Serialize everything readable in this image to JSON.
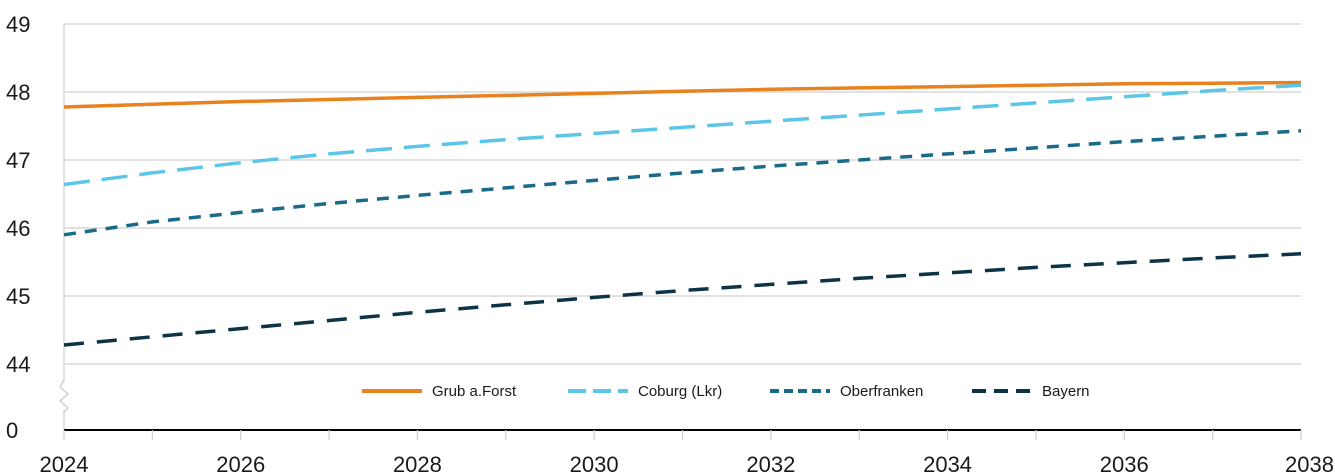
{
  "chart_data": {
    "type": "line",
    "title": "",
    "xlabel": "",
    "ylabel": "",
    "x": [
      2024,
      2025,
      2026,
      2027,
      2028,
      2029,
      2030,
      2031,
      2032,
      2033,
      2034,
      2035,
      2036,
      2037,
      2038
    ],
    "xlim": [
      2024,
      2038
    ],
    "x_tick_labels": [
      "2024",
      "2026",
      "2028",
      "2030",
      "2032",
      "2034",
      "2036",
      "2038"
    ],
    "y_tick_labels": [
      "0",
      "44",
      "45",
      "46",
      "47",
      "48",
      "49"
    ],
    "y_axis_break": true,
    "ylim_upper": [
      44,
      49
    ],
    "grid": true,
    "legend_position": "bottom-center",
    "series": [
      {
        "name": "Grub a.Forst",
        "color": "#e8821e",
        "dash": "solid",
        "values": [
          47.78,
          47.82,
          47.86,
          47.89,
          47.92,
          47.95,
          47.98,
          48.01,
          48.04,
          48.06,
          48.08,
          48.1,
          48.12,
          48.13,
          48.14
        ]
      },
      {
        "name": "Coburg (Lkr)",
        "color": "#5cc6e8",
        "dash": "long",
        "values": [
          46.64,
          46.81,
          46.96,
          47.09,
          47.2,
          47.3,
          47.39,
          47.48,
          47.57,
          47.66,
          47.75,
          47.84,
          47.93,
          48.02,
          48.1
        ]
      },
      {
        "name": "Oberfranken",
        "color": "#1a6a8a",
        "dash": "short",
        "values": [
          45.9,
          46.09,
          46.23,
          46.36,
          46.48,
          46.59,
          46.7,
          46.81,
          46.91,
          47.0,
          47.09,
          47.18,
          47.27,
          47.35,
          47.43
        ]
      },
      {
        "name": "Bayern",
        "color": "#0d3347",
        "dash": "medium",
        "values": [
          44.28,
          44.4,
          44.52,
          44.64,
          44.76,
          44.87,
          44.98,
          45.08,
          45.17,
          45.26,
          45.34,
          45.42,
          45.49,
          45.56,
          45.62
        ]
      }
    ]
  }
}
